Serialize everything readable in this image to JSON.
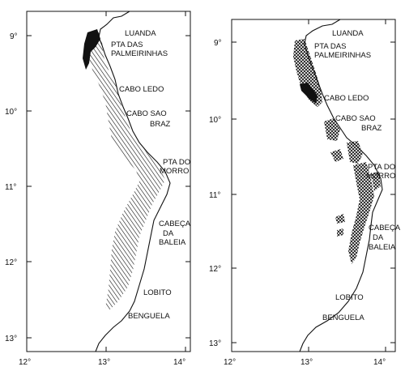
{
  "left_map": {
    "axis": {
      "x_ticks": [
        "12°",
        "13°",
        "14°"
      ],
      "y_ticks": [
        "9°",
        "10°",
        "11°",
        "12°",
        "13°"
      ]
    },
    "places": [
      "LUANDA",
      "PTA DAS",
      "PALMEIRINHAS",
      "CABO LEDO",
      "CABO SAO",
      "BRAZ",
      "PTA DO",
      "MORRO",
      "CABEÇA",
      "DA",
      "BALEIA",
      "LOBITO",
      "BENGUELA"
    ]
  },
  "right_map": {
    "axis": {
      "x_ticks": [
        "12°",
        "13°",
        "14°"
      ],
      "y_ticks": [
        "9°",
        "10°",
        "11°",
        "12°",
        "13°"
      ]
    },
    "places": [
      "LUANDA",
      "PTA DAS",
      "PALMEIRINHAS",
      "CABO LEDO",
      "CABO SAO",
      "BRAZ",
      "PTA DO",
      "MORRO",
      "CABEÇA",
      "DA",
      "BALEIA",
      "LOBITO",
      "BENGUELA"
    ]
  },
  "colors": {
    "ink": "#111111",
    "paper": "#ffffff"
  }
}
